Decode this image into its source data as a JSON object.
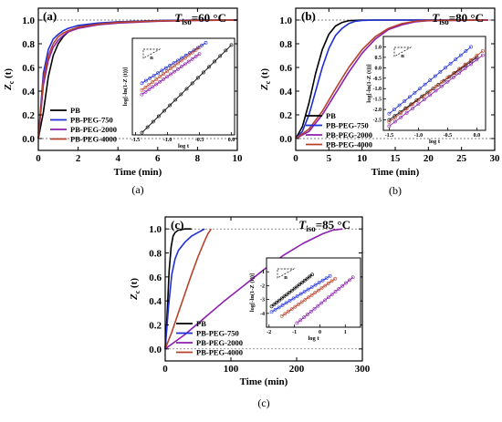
{
  "colors": {
    "PB": "#000000",
    "PB-PEG-750": "#1f2fd6",
    "PB-PEG-2000": "#8a1fb0",
    "PB-PEG-4000": "#b8412b"
  },
  "chart_data": [
    {
      "type": "line",
      "panel_label": "(a)",
      "caption": "(a)",
      "title_text": "=60 °C",
      "title_T": "T",
      "title_sub": "iso",
      "xlabel": "Time (min)",
      "ylabel_main": "Z",
      "ylabel_sub": "c",
      "ylabel_tail": " (t)",
      "xlim": [
        0,
        10
      ],
      "ylim": [
        -0.1,
        1.1
      ],
      "xticks": [
        0,
        2,
        4,
        6,
        8,
        10
      ],
      "yticks": [
        0.0,
        0.2,
        0.4,
        0.6,
        0.8,
        1.0
      ],
      "ytick_labels": [
        "0.0",
        "0.2",
        "0.4",
        "0.6",
        "0.8",
        "1.0"
      ],
      "series": [
        {
          "name": "PB",
          "x": [
            0,
            0.25,
            0.5,
            0.75,
            1,
            1.25,
            1.5,
            2,
            3,
            4,
            6,
            8,
            10
          ],
          "y": [
            0,
            0.22,
            0.52,
            0.7,
            0.8,
            0.86,
            0.9,
            0.94,
            0.97,
            0.985,
            0.995,
            0.999,
            1.0
          ]
        },
        {
          "name": "PB-PEG-750",
          "x": [
            0,
            0.25,
            0.5,
            0.75,
            1,
            1.25,
            1.5,
            2,
            3,
            4,
            6,
            8,
            10
          ],
          "y": [
            0,
            0.55,
            0.75,
            0.84,
            0.88,
            0.91,
            0.93,
            0.955,
            0.975,
            0.985,
            0.995,
            0.999,
            1.0
          ]
        },
        {
          "name": "PB-PEG-2000",
          "x": [
            0,
            0.25,
            0.5,
            0.75,
            1,
            1.25,
            1.5,
            2,
            3,
            4,
            6,
            8,
            10
          ],
          "y": [
            0,
            0.45,
            0.66,
            0.77,
            0.83,
            0.87,
            0.9,
            0.93,
            0.96,
            0.975,
            0.99,
            0.997,
            1.0
          ]
        },
        {
          "name": "PB-PEG-4000",
          "x": [
            0,
            0.25,
            0.5,
            0.75,
            1,
            1.25,
            1.5,
            2,
            3,
            4,
            6,
            8,
            10
          ],
          "y": [
            0,
            0.5,
            0.7,
            0.8,
            0.86,
            0.89,
            0.91,
            0.94,
            0.965,
            0.98,
            0.993,
            0.998,
            1.0
          ]
        }
      ],
      "inset": {
        "xlabel": "log t",
        "ylabel": "log[-ln(1-Z (t))]",
        "xlim": [
          -1.55,
          0.05
        ],
        "ylim": [
          -1.95,
          0.2
        ],
        "xticks": [
          -1.5,
          -1.0,
          -0.5,
          0.0
        ],
        "xtick_labels": [
          "-1.5",
          "-1.0",
          "-0.5",
          "0.0"
        ],
        "yticks": [],
        "ytick_labels": [],
        "slope_label": "n",
        "series": [
          {
            "name": "PB",
            "x": [
              -1.4,
              0.0
            ],
            "y": [
              -1.9,
              0.05
            ]
          },
          {
            "name": "PB-PEG-750",
            "x": [
              -1.4,
              -0.4
            ],
            "y": [
              -0.8,
              0.1
            ]
          },
          {
            "name": "PB-PEG-2000",
            "x": [
              -1.4,
              -0.5
            ],
            "y": [
              -1.05,
              -0.15
            ]
          },
          {
            "name": "PB-PEG-4000",
            "x": [
              -1.4,
              -0.5
            ],
            "y": [
              -0.95,
              0.0
            ]
          }
        ]
      }
    },
    {
      "type": "line",
      "panel_label": "(b)",
      "caption": "(b)",
      "title_text": "=80 °C",
      "title_T": "T",
      "title_sub": "iso",
      "xlabel": "Time (min)",
      "ylabel_main": "Z",
      "ylabel_sub": "c",
      "ylabel_tail": " (t)",
      "xlim": [
        0,
        30
      ],
      "ylim": [
        -0.1,
        1.1
      ],
      "xticks": [
        0,
        5,
        10,
        15,
        20,
        25,
        30
      ],
      "yticks": [
        0.0,
        0.2,
        0.4,
        0.6,
        0.8,
        1.0
      ],
      "ytick_labels": [
        "0.0",
        "0.2",
        "0.4",
        "0.6",
        "0.8",
        "1.0"
      ],
      "series": [
        {
          "name": "PB",
          "x": [
            0,
            1,
            2,
            3,
            4,
            5,
            6,
            7,
            8,
            10,
            29
          ],
          "y": [
            0,
            0.1,
            0.3,
            0.55,
            0.75,
            0.88,
            0.95,
            0.98,
            0.995,
            1.0,
            1.0
          ]
        },
        {
          "name": "PB-PEG-750",
          "x": [
            0,
            1,
            2,
            3,
            4,
            5,
            6,
            7,
            8,
            9,
            10,
            12,
            29
          ],
          "y": [
            0,
            0.06,
            0.2,
            0.4,
            0.6,
            0.76,
            0.87,
            0.93,
            0.97,
            0.99,
            0.997,
            1.0,
            1.0
          ]
        },
        {
          "name": "PB-PEG-2000",
          "x": [
            0,
            2,
            4,
            6,
            8,
            10,
            12,
            14,
            16,
            18,
            20,
            29
          ],
          "y": [
            0,
            0.06,
            0.2,
            0.38,
            0.56,
            0.72,
            0.84,
            0.92,
            0.96,
            0.985,
            0.995,
            1.0
          ]
        },
        {
          "name": "PB-PEG-4000",
          "x": [
            0,
            2,
            4,
            6,
            8,
            10,
            12,
            14,
            16,
            18,
            20,
            29
          ],
          "y": [
            0,
            0.08,
            0.23,
            0.42,
            0.6,
            0.75,
            0.86,
            0.93,
            0.97,
            0.99,
            0.997,
            1.0
          ]
        }
      ],
      "inset": {
        "xlabel": "log t",
        "ylabel": "log[-ln(1-Z (t))]",
        "xlim": [
          -1.6,
          0.15
        ],
        "ylim": [
          -3.0,
          1.5
        ],
        "xticks": [
          -1.5,
          -1.0,
          -0.5,
          0.0
        ],
        "xtick_labels": [
          "-1.5",
          "-1.0",
          "-0.5",
          "0.0"
        ],
        "yticks": [
          -2.5,
          -2.0,
          -1.5,
          -1.0,
          -0.5,
          0.0,
          0.5,
          1.0
        ],
        "ytick_labels": [
          "-2.5",
          "-2.0",
          "-1.5",
          "-1.0",
          "-0.5",
          "0.0",
          "0.5",
          "1.0"
        ],
        "slope_label": "n",
        "series": [
          {
            "name": "PB",
            "x": [
              -1.5,
              0.0
            ],
            "y": [
              -2.5,
              0.5
            ]
          },
          {
            "name": "PB-PEG-750",
            "x": [
              -1.5,
              -0.1
            ],
            "y": [
              -2.2,
              1.0
            ]
          },
          {
            "name": "PB-PEG-2000",
            "x": [
              -1.5,
              0.1
            ],
            "y": [
              -2.8,
              0.6
            ]
          },
          {
            "name": "PB-PEG-4000",
            "x": [
              -1.5,
              0.1
            ],
            "y": [
              -2.6,
              0.8
            ]
          }
        ]
      }
    },
    {
      "type": "line",
      "panel_label": "(c)",
      "caption": "(c)",
      "title_text": "=85 °C",
      "title_T": "T",
      "title_sub": "iso",
      "xlabel": "Time (min)",
      "ylabel_main": "Z",
      "ylabel_sub": "c",
      "ylabel_tail": " (t)",
      "xlim": [
        0,
        300
      ],
      "ylim": [
        -0.1,
        1.1
      ],
      "xticks": [
        0,
        100,
        200,
        300
      ],
      "yticks": [
        0.0,
        0.2,
        0.4,
        0.6,
        0.8,
        1.0
      ],
      "ytick_labels": [
        "0.0",
        "0.2",
        "0.4",
        "0.6",
        "0.8",
        "1.0"
      ],
      "series": [
        {
          "name": "PB",
          "x": [
            0,
            3,
            6,
            9,
            12,
            15,
            20,
            30,
            40
          ],
          "y": [
            0,
            0.3,
            0.65,
            0.85,
            0.94,
            0.97,
            0.99,
            1.0,
            1.0
          ]
        },
        {
          "name": "PB-PEG-750",
          "x": [
            0,
            5,
            10,
            15,
            20,
            30,
            40,
            50,
            60
          ],
          "y": [
            0,
            0.35,
            0.62,
            0.75,
            0.82,
            0.89,
            0.94,
            0.97,
            1.0
          ]
        },
        {
          "name": "PB-PEG-2000",
          "x": [
            0,
            30,
            60,
            90,
            120,
            150,
            180,
            210,
            240,
            255,
            270
          ],
          "y": [
            0,
            0.12,
            0.26,
            0.4,
            0.53,
            0.66,
            0.78,
            0.88,
            0.96,
            0.99,
            1.0
          ]
        },
        {
          "name": "PB-PEG-4000",
          "x": [
            0,
            10,
            20,
            30,
            40,
            50,
            60,
            65,
            70
          ],
          "y": [
            0,
            0.14,
            0.3,
            0.46,
            0.62,
            0.77,
            0.9,
            0.96,
            1.0
          ]
        }
      ],
      "inset": {
        "xlabel": "log t",
        "ylabel": "log[-ln(1-Z (t))]",
        "xlim": [
          -2.1,
          1.6
        ],
        "ylim": [
          -5.0,
          0.0
        ],
        "xticks": [
          -2,
          -1,
          0,
          1
        ],
        "xtick_labels": [
          "-2",
          "-1",
          "0",
          "1"
        ],
        "yticks": [
          -4,
          -3,
          -2,
          -1
        ],
        "ytick_labels": [
          "-4",
          "-3",
          "-2",
          "-1"
        ],
        "slope_label": "n",
        "series": [
          {
            "name": "PB",
            "x": [
              -1.9,
              -0.3
            ],
            "y": [
              -3.5,
              -1.2
            ]
          },
          {
            "name": "PB-PEG-750",
            "x": [
              -1.9,
              0.4
            ],
            "y": [
              -3.9,
              -1.3
            ]
          },
          {
            "name": "PB-PEG-2000",
            "x": [
              -0.9,
              1.3
            ],
            "y": [
              -4.7,
              -1.4
            ]
          },
          {
            "name": "PB-PEG-4000",
            "x": [
              -1.5,
              0.6
            ],
            "y": [
              -4.2,
              -1.5
            ]
          }
        ]
      }
    }
  ]
}
